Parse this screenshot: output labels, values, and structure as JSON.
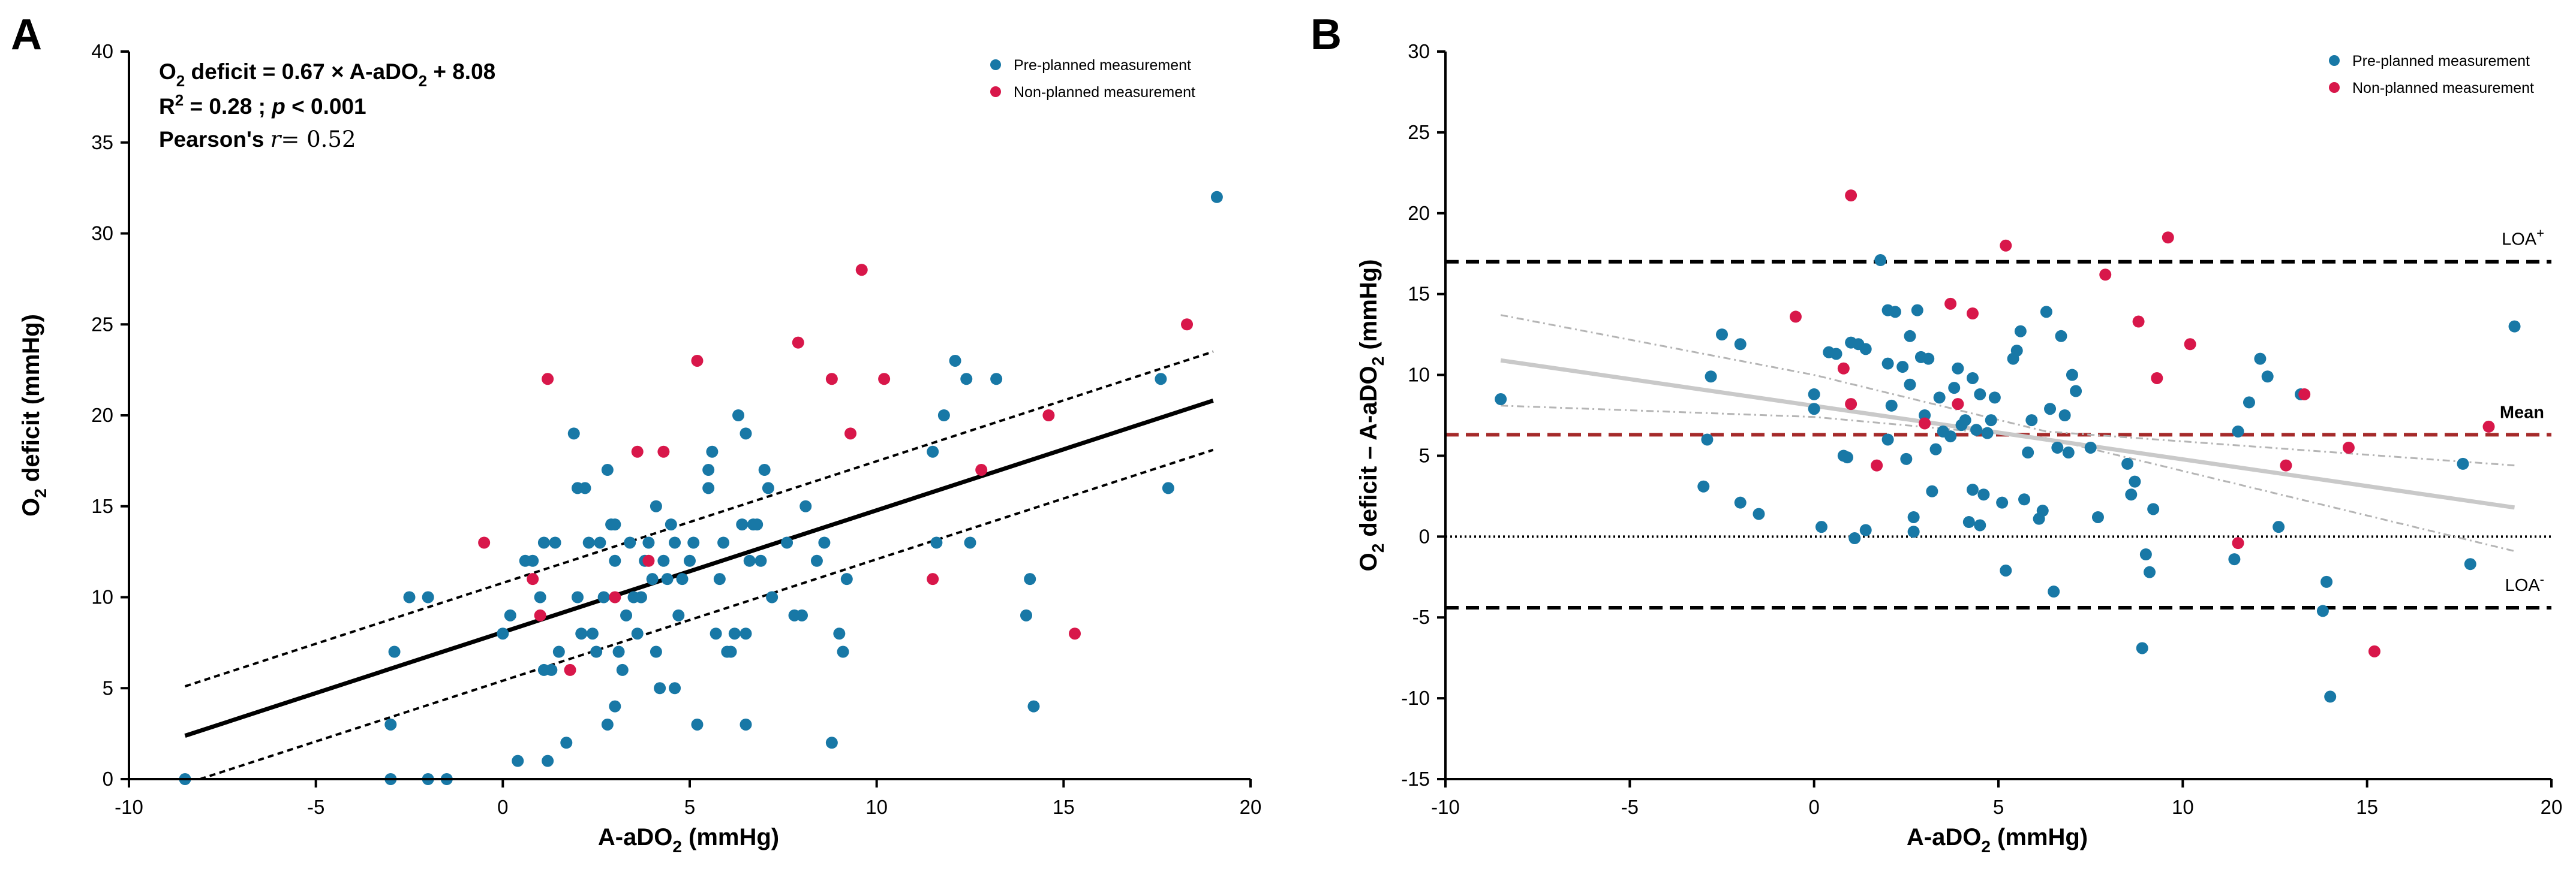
{
  "colors": {
    "pre": "#1878A6",
    "non": "#D8174A",
    "mean": "#A52A2A",
    "trend": "#C9C9C9",
    "ci": "#B5B5B5"
  },
  "chart_data": [
    {
      "panel": "A",
      "type": "scatter",
      "title": "",
      "xlabel_main": "A-aDO",
      "xlabel_sub": "2",
      "xlabel_rest": " (mmHg)",
      "ylabel_main": "O",
      "ylabel_sub": "2",
      "ylabel_rest": " deficit (mmHg)",
      "xlim": [
        -10,
        20
      ],
      "ylim": [
        0,
        40
      ],
      "xticks": [
        -10,
        -5,
        0,
        5,
        10,
        15,
        20
      ],
      "yticks": [
        0,
        5,
        10,
        15,
        20,
        25,
        30,
        35,
        40
      ],
      "stats": {
        "eq_prefix": "O",
        "eq_sub1": "2",
        "eq_mid": " deficit = 0.67 × A-aDO",
        "eq_sub2": "2",
        "eq_suffix": " + 8.08",
        "r2_main": "R",
        "r2_sup": "2",
        "r2_rest": " = 0.28 ; ",
        "p_italic": "p",
        "p_rest": " < 0.001",
        "pearson_label": "Pearson's ",
        "pearson_r": "r",
        "pearson_value": "= 0.52"
      },
      "legend": [
        "Pre-planned measurement",
        "Non-planned measurement"
      ],
      "regression": {
        "slope": 0.67,
        "intercept": 8.08,
        "x_range": [
          -8.5,
          19
        ]
      },
      "ci_lower": [
        [
          -8.1,
          0
        ],
        [
          19,
          18.1
        ]
      ],
      "ci_upper": [
        [
          -8.5,
          5.1
        ],
        [
          19,
          23.5
        ]
      ],
      "series": [
        {
          "name": "Pre-planned measurement",
          "points": [
            [
              -8.5,
              0
            ],
            [
              -3,
              0
            ],
            [
              -2,
              0
            ],
            [
              -1.5,
              0
            ],
            [
              -3,
              3
            ],
            [
              -2.5,
              10
            ],
            [
              -2,
              10
            ],
            [
              -2.9,
              7
            ],
            [
              0,
              8
            ],
            [
              0.2,
              9
            ],
            [
              0.4,
              1
            ],
            [
              0.6,
              12
            ],
            [
              0.8,
              12
            ],
            [
              1,
              10
            ],
            [
              1.1,
              6
            ],
            [
              1.1,
              13
            ],
            [
              1.2,
              1
            ],
            [
              1.3,
              6
            ],
            [
              1.4,
              13
            ],
            [
              1.5,
              7
            ],
            [
              1.7,
              2
            ],
            [
              1.9,
              19
            ],
            [
              2,
              16
            ],
            [
              2,
              10
            ],
            [
              2.1,
              8
            ],
            [
              2.2,
              16
            ],
            [
              2.3,
              13
            ],
            [
              2.4,
              8
            ],
            [
              2.5,
              7
            ],
            [
              2.6,
              13
            ],
            [
              2.7,
              10
            ],
            [
              2.8,
              3
            ],
            [
              2.8,
              17
            ],
            [
              2.9,
              14
            ],
            [
              3,
              4
            ],
            [
              3,
              14
            ],
            [
              3,
              12
            ],
            [
              3.1,
              7
            ],
            [
              3.2,
              6
            ],
            [
              3.3,
              9
            ],
            [
              3.4,
              13
            ],
            [
              3.5,
              10
            ],
            [
              3.6,
              8
            ],
            [
              3.7,
              10
            ],
            [
              3.8,
              12
            ],
            [
              3.9,
              13
            ],
            [
              4,
              11
            ],
            [
              4.1,
              7
            ],
            [
              4.1,
              15
            ],
            [
              4.2,
              5
            ],
            [
              4.3,
              12
            ],
            [
              4.4,
              11
            ],
            [
              4.5,
              14
            ],
            [
              4.6,
              5
            ],
            [
              4.6,
              13
            ],
            [
              4.7,
              9
            ],
            [
              4.8,
              11
            ],
            [
              5,
              12
            ],
            [
              5.1,
              13
            ],
            [
              5.2,
              3
            ],
            [
              5.5,
              16
            ],
            [
              5.5,
              17
            ],
            [
              5.6,
              18
            ],
            [
              5.7,
              8
            ],
            [
              5.8,
              11
            ],
            [
              5.9,
              13
            ],
            [
              6,
              7
            ],
            [
              6.1,
              7
            ],
            [
              6.2,
              8
            ],
            [
              6.3,
              20
            ],
            [
              6.4,
              14
            ],
            [
              6.5,
              3
            ],
            [
              6.5,
              8
            ],
            [
              6.6,
              12
            ],
            [
              6.7,
              14
            ],
            [
              6.8,
              14
            ],
            [
              6.9,
              12
            ],
            [
              7,
              17
            ],
            [
              7.1,
              16
            ],
            [
              7.2,
              10
            ],
            [
              7.6,
              13
            ],
            [
              7.8,
              9
            ],
            [
              8,
              9
            ],
            [
              8.1,
              15
            ],
            [
              8.4,
              12
            ],
            [
              8.6,
              13
            ],
            [
              9,
              8
            ],
            [
              9.1,
              7
            ],
            [
              9.2,
              11
            ],
            [
              8.8,
              2
            ],
            [
              6.5,
              19
            ],
            [
              11.5,
              18
            ],
            [
              11.6,
              13
            ],
            [
              11.8,
              20
            ],
            [
              12.1,
              23
            ],
            [
              12.4,
              22
            ],
            [
              12.5,
              13
            ],
            [
              13.2,
              22
            ],
            [
              14,
              9
            ],
            [
              14.1,
              11
            ],
            [
              14.2,
              4
            ],
            [
              17.6,
              22
            ],
            [
              17.8,
              16
            ],
            [
              19.1,
              32
            ]
          ]
        },
        {
          "name": "Non-planned measurement",
          "points": [
            [
              -0.5,
              13
            ],
            [
              0.8,
              11
            ],
            [
              1,
              9
            ],
            [
              1.2,
              22
            ],
            [
              1.8,
              6
            ],
            [
              3,
              10
            ],
            [
              3.6,
              18
            ],
            [
              3.9,
              12
            ],
            [
              4.3,
              18
            ],
            [
              5.2,
              23
            ],
            [
              7.9,
              24
            ],
            [
              8.8,
              22
            ],
            [
              9.3,
              19
            ],
            [
              9.6,
              28
            ],
            [
              10.2,
              22
            ],
            [
              11.5,
              11
            ],
            [
              12.8,
              17
            ],
            [
              14.6,
              20
            ],
            [
              15.3,
              8
            ],
            [
              18.3,
              25
            ]
          ]
        }
      ]
    },
    {
      "panel": "B",
      "type": "scatter",
      "title": "",
      "xlabel_main": "A-aDO",
      "xlabel_sub": "2",
      "xlabel_rest": " (mmHg)",
      "ylabel_main": "O",
      "ylabel_sub": "2",
      "ylabel_rest": " deficit – A-aDO",
      "ylabel_sub2": "2",
      "ylabel_rest2": " (mmHg)",
      "xlim": [
        -10,
        20
      ],
      "ylim": [
        -15,
        30
      ],
      "xticks": [
        -10,
        -5,
        0,
        5,
        10,
        15,
        20
      ],
      "yticks": [
        -15,
        -10,
        -5,
        0,
        5,
        10,
        15,
        20,
        25,
        30
      ],
      "legend": [
        "Pre-planned measurement",
        "Non-planned measurement"
      ],
      "reference_lines": {
        "loa_upper": 17,
        "loa_lower": -4.4,
        "mean": 6.3,
        "zero": 0,
        "loa_upper_label_main": "LOA",
        "loa_upper_label_sup": "+",
        "loa_lower_label_main": "LOA",
        "loa_lower_label_sup": "-",
        "mean_label": "Mean"
      },
      "trend": [
        [
          -8.5,
          10.9
        ],
        [
          19,
          1.8
        ]
      ],
      "trend_ci_upper": [
        [
          -8.5,
          13.7
        ],
        [
          0,
          10
        ],
        [
          6.3,
          6.5
        ],
        [
          19,
          4.4
        ]
      ],
      "trend_ci_lower": [
        [
          -8.5,
          8.1
        ],
        [
          0,
          7.4
        ],
        [
          6.3,
          6.1
        ],
        [
          19,
          -0.9
        ]
      ],
      "series": [
        {
          "name": "Pre-planned measurement",
          "points": [
            [
              -8.5,
              8.5
            ],
            [
              -3,
              3.1
            ],
            [
              -2.9,
              6
            ],
            [
              -2.8,
              9.9
            ],
            [
              -2.5,
              12.5
            ],
            [
              -2,
              2.1
            ],
            [
              -2,
              11.9
            ],
            [
              -1.5,
              1.4
            ],
            [
              0,
              8.8
            ],
            [
              0,
              7.9
            ],
            [
              0.2,
              0.6
            ],
            [
              0.4,
              11.4
            ],
            [
              0.6,
              11.3
            ],
            [
              0.8,
              5
            ],
            [
              0.9,
              4.9
            ],
            [
              1,
              12
            ],
            [
              1.1,
              -0.1
            ],
            [
              1.2,
              11.9
            ],
            [
              1.4,
              0.4
            ],
            [
              1.4,
              11.6
            ],
            [
              1.8,
              17.1
            ],
            [
              2,
              14
            ],
            [
              2,
              10.7
            ],
            [
              2,
              6
            ],
            [
              2.1,
              8.1
            ],
            [
              2.2,
              13.9
            ],
            [
              2.4,
              10.5
            ],
            [
              2.5,
              4.8
            ],
            [
              2.6,
              12.4
            ],
            [
              2.6,
              9.4
            ],
            [
              2.7,
              1.2
            ],
            [
              2.7,
              0.3
            ],
            [
              2.8,
              14
            ],
            [
              2.9,
              11.1
            ],
            [
              3,
              7.5
            ],
            [
              3.1,
              11
            ],
            [
              3.2,
              2.8
            ],
            [
              3.3,
              5.4
            ],
            [
              3.4,
              8.6
            ],
            [
              3.5,
              6.5
            ],
            [
              3.7,
              6.2
            ],
            [
              3.8,
              9.2
            ],
            [
              3.9,
              10.4
            ],
            [
              4,
              6.9
            ],
            [
              4.1,
              7.2
            ],
            [
              4.2,
              0.9
            ],
            [
              4.3,
              2.9
            ],
            [
              4.3,
              9.8
            ],
            [
              4.4,
              6.6
            ],
            [
              4.5,
              0.7
            ],
            [
              4.5,
              8.8
            ],
            [
              4.6,
              2.6
            ],
            [
              4.7,
              6.4
            ],
            [
              4.8,
              7.2
            ],
            [
              4.9,
              8.6
            ],
            [
              5.1,
              2.1
            ],
            [
              5.2,
              -2.1
            ],
            [
              5.4,
              11
            ],
            [
              5.5,
              11.5
            ],
            [
              5.6,
              12.7
            ],
            [
              5.7,
              2.3
            ],
            [
              5.8,
              5.2
            ],
            [
              5.9,
              7.2
            ],
            [
              6.1,
              1.1
            ],
            [
              6.2,
              1.6
            ],
            [
              6.3,
              13.9
            ],
            [
              6.4,
              7.9
            ],
            [
              6.5,
              -3.4
            ],
            [
              6.6,
              5.5
            ],
            [
              6.7,
              12.4
            ],
            [
              6.8,
              7.5
            ],
            [
              6.9,
              5.2
            ],
            [
              7,
              10
            ],
            [
              7.1,
              9
            ],
            [
              7.5,
              5.5
            ],
            [
              7.7,
              1.2
            ],
            [
              8.5,
              4.5
            ],
            [
              8.9,
              -6.9
            ],
            [
              9,
              -1.1
            ],
            [
              9.1,
              -2.2
            ],
            [
              9.2,
              1.7
            ],
            [
              8.6,
              2.6
            ],
            [
              8.7,
              3.4
            ],
            [
              11.5,
              6.5
            ],
            [
              11.4,
              -1.4
            ],
            [
              11.8,
              8.3
            ],
            [
              12.1,
              11
            ],
            [
              12.3,
              9.9
            ],
            [
              12.6,
              0.6
            ],
            [
              13.2,
              8.8
            ],
            [
              13.8,
              -4.6
            ],
            [
              13.9,
              -2.8
            ],
            [
              14,
              -9.9
            ],
            [
              17.6,
              4.5
            ],
            [
              17.8,
              -1.7
            ],
            [
              19,
              13
            ]
          ]
        },
        {
          "name": "Non-planned measurement",
          "points": [
            [
              -0.5,
              13.6
            ],
            [
              0.8,
              10.4
            ],
            [
              1,
              8.2
            ],
            [
              1,
              21.1
            ],
            [
              1.7,
              4.4
            ],
            [
              3,
              7
            ],
            [
              3.7,
              14.4
            ],
            [
              3.9,
              8.2
            ],
            [
              4.3,
              13.8
            ],
            [
              5.2,
              18
            ],
            [
              7.9,
              16.2
            ],
            [
              8.8,
              13.3
            ],
            [
              9.3,
              9.8
            ],
            [
              9.6,
              18.5
            ],
            [
              10.2,
              11.9
            ],
            [
              11.5,
              -0.4
            ],
            [
              12.8,
              4.4
            ],
            [
              14.5,
              5.5
            ],
            [
              15.2,
              -7.1
            ],
            [
              18.3,
              6.8
            ],
            [
              13.3,
              8.8
            ]
          ]
        }
      ]
    }
  ]
}
